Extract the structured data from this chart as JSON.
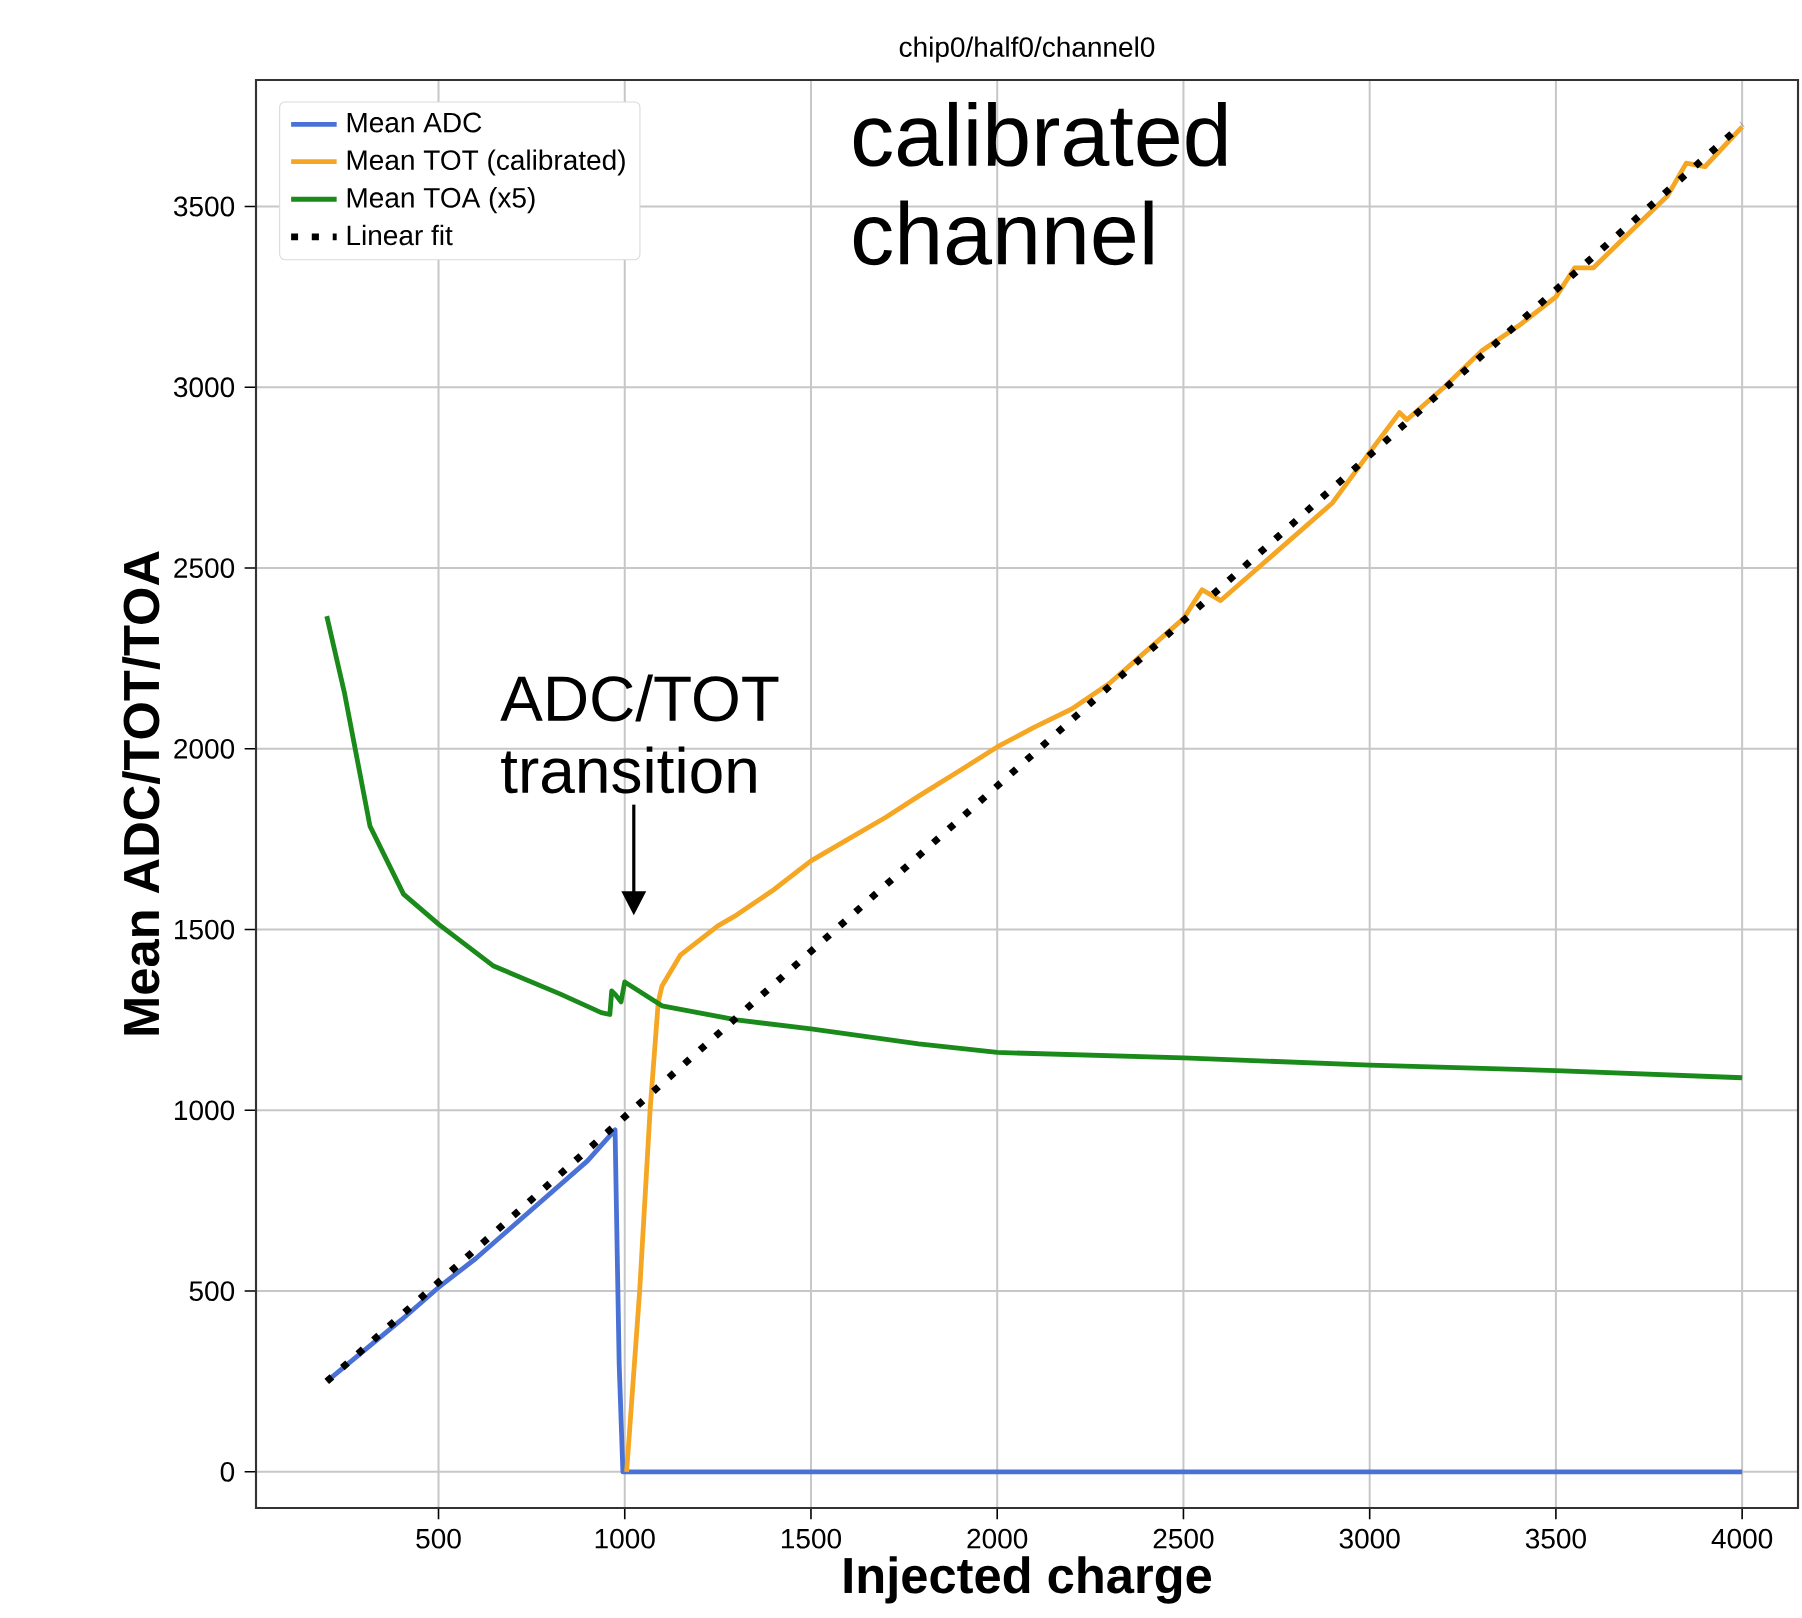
{
  "chart_data": {
    "type": "line",
    "title": "chip0/half0/channel0",
    "xlabel": "Injected charge",
    "ylabel": "Mean ADC/TOT/TOA",
    "xlim": [
      10,
      4150
    ],
    "ylim": [
      -100,
      3850
    ],
    "xticks": [
      500,
      1000,
      1500,
      2000,
      2500,
      3000,
      3500,
      4000
    ],
    "yticks": [
      0,
      500,
      1000,
      1500,
      2000,
      2500,
      3000,
      3500
    ],
    "grid": true,
    "legend": "top left",
    "annotations": [
      "calibrated channel",
      "ADC/TOT transition"
    ],
    "series": [
      {
        "name": "Mean ADC",
        "color": "#4a72d6",
        "x": [
          200,
          300,
          400,
          500,
          600,
          700,
          800,
          900,
          974,
          985,
          995,
          1500,
          2000,
          2500,
          3000,
          3500,
          4000
        ],
        "values": [
          250,
          335,
          420,
          510,
          590,
          680,
          770,
          860,
          946,
          300,
          0,
          0,
          0,
          0,
          0,
          0,
          0
        ]
      },
      {
        "name": "Mean TOT (calibrated)",
        "color": "#f5a623",
        "x": [
          1005,
          1040,
          1068,
          1090,
          1100,
          1150,
          1200,
          1250,
          1300,
          1400,
          1500,
          1600,
          1700,
          1789,
          1900,
          2000,
          2100,
          2200,
          2300,
          2400,
          2500,
          2550,
          2600,
          2700,
          2800,
          2900,
          3000,
          3080,
          3100,
          3200,
          3300,
          3400,
          3500,
          3550,
          3600,
          3700,
          3800,
          3850,
          3900,
          4000
        ],
        "values": [
          0,
          500,
          1000,
          1300,
          1344,
          1430,
          1470,
          1510,
          1540,
          1610,
          1690,
          1750,
          1810,
          1869,
          1940,
          2005,
          2060,
          2110,
          2180,
          2270,
          2360,
          2440,
          2410,
          2500,
          2590,
          2680,
          2820,
          2930,
          2910,
          3000,
          3100,
          3170,
          3250,
          3330,
          3330,
          3430,
          3530,
          3620,
          3610,
          3720
        ]
      },
      {
        "name": "Mean TOA (x5)",
        "color": "#1a8a1a",
        "x": [
          200,
          248,
          316,
          406,
          500,
          648,
          826,
          937,
          960,
          965,
          975,
          990,
          1000,
          1100,
          1300,
          1500,
          1789,
          2000,
          2500,
          3000,
          3500,
          4000
        ],
        "values": [
          2367,
          2152,
          1786,
          1598,
          1515,
          1399,
          1322,
          1270,
          1265,
          1330,
          1320,
          1300,
          1355,
          1289,
          1250,
          1225,
          1184,
          1160,
          1145,
          1125,
          1110,
          1090
        ]
      },
      {
        "name": "Linear fit",
        "color": "#000000",
        "line_style": "dotted",
        "x": [
          200,
          4000
        ],
        "values": [
          250,
          3727
        ]
      }
    ]
  }
}
